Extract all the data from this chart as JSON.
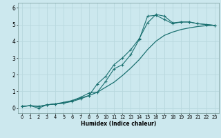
{
  "xlabel": "Humidex (Indice chaleur)",
  "ylabel": "",
  "background_color": "#cce8ee",
  "grid_color": "#b8d8de",
  "line_color": "#1a7070",
  "xlim": [
    -0.5,
    23.5
  ],
  "ylim": [
    -0.3,
    6.3
  ],
  "xtick_labels": [
    "0",
    "1",
    "2",
    "3",
    "4",
    "5",
    "6",
    "7",
    "8",
    "9",
    "10",
    "11",
    "12",
    "13",
    "14",
    "15",
    "16",
    "17",
    "18",
    "19",
    "20",
    "21",
    "22",
    "23"
  ],
  "xtick_vals": [
    0,
    1,
    2,
    3,
    4,
    5,
    6,
    7,
    8,
    9,
    10,
    11,
    12,
    13,
    14,
    15,
    16,
    17,
    18,
    19,
    20,
    21,
    22,
    23
  ],
  "ytick_vals": [
    0,
    1,
    2,
    3,
    4,
    5,
    6
  ],
  "line1_x": [
    0,
    1,
    2,
    3,
    4,
    5,
    6,
    7,
    8,
    9,
    10,
    11,
    12,
    13,
    14,
    15,
    16,
    17,
    18,
    19,
    20,
    21,
    22,
    23
  ],
  "line1_y": [
    0.1,
    0.15,
    0.1,
    0.2,
    0.25,
    0.3,
    0.4,
    0.55,
    0.75,
    1.45,
    1.9,
    2.6,
    3.0,
    3.5,
    4.15,
    5.1,
    5.6,
    5.5,
    5.1,
    5.15,
    5.15,
    5.05,
    5.0,
    4.95
  ],
  "line2_x": [
    0,
    1,
    2,
    3,
    4,
    5,
    6,
    7,
    8,
    9,
    10,
    11,
    12,
    13,
    14,
    15,
    16,
    17,
    18,
    19,
    20,
    21,
    22,
    23
  ],
  "line2_y": [
    0.1,
    0.15,
    0.0,
    0.2,
    0.25,
    0.3,
    0.45,
    0.65,
    0.9,
    0.95,
    1.6,
    2.35,
    2.6,
    3.2,
    4.1,
    5.5,
    5.55,
    5.3,
    5.05,
    5.15,
    5.15,
    5.05,
    5.0,
    4.95
  ],
  "line3_x": [
    0,
    1,
    2,
    3,
    4,
    5,
    6,
    7,
    8,
    9,
    10,
    11,
    12,
    13,
    14,
    15,
    16,
    17,
    18,
    19,
    20,
    21,
    22,
    23
  ],
  "line3_y": [
    0.1,
    0.15,
    0.1,
    0.2,
    0.25,
    0.35,
    0.45,
    0.6,
    0.75,
    0.95,
    1.25,
    1.55,
    1.95,
    2.4,
    2.9,
    3.5,
    4.0,
    4.35,
    4.55,
    4.7,
    4.8,
    4.88,
    4.93,
    4.95
  ]
}
